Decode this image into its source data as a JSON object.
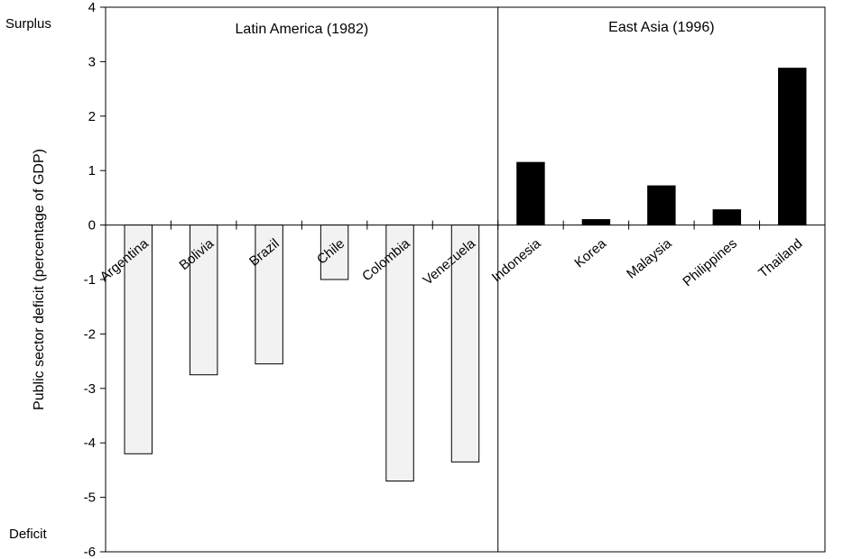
{
  "chart_data": {
    "type": "bar",
    "ylabel": "Public sector deficit (percentage of GDP)",
    "ylim": [
      -6,
      4
    ],
    "yticks": [
      "4",
      "3",
      "2",
      "1",
      "0",
      "-1",
      "-2",
      "-3",
      "-4",
      "-5",
      "-6"
    ],
    "side_labels": {
      "top": "Surplus",
      "bottom": "Deficit"
    },
    "regions": [
      {
        "name": "Latin America (1982)",
        "color": "#f2f2f2",
        "categories": [
          "Argentina",
          "Bolivia",
          "Brazil",
          "Chile",
          "Colombia",
          "Venezuela"
        ],
        "values": [
          -4.2,
          -2.75,
          -2.55,
          -1.0,
          -4.7,
          -4.35
        ]
      },
      {
        "name": "East Asia (1996)",
        "color": "#000000",
        "categories": [
          "Indonesia",
          "Korea",
          "Malaysia",
          "Philippines",
          "Thailand"
        ],
        "values": [
          1.15,
          0.1,
          0.72,
          0.28,
          2.88
        ]
      }
    ],
    "grid": false,
    "legend": "none"
  }
}
